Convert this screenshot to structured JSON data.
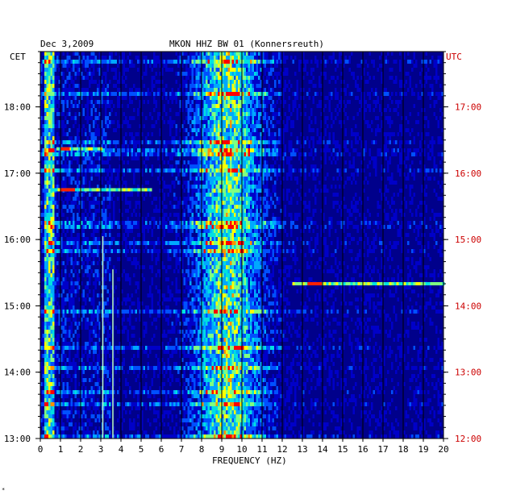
{
  "header": {
    "date": "Dec 3,2009",
    "station": "MKON HHZ BW 01 (Konnersreuth)",
    "left_zone": "CET",
    "right_zone": "UTC",
    "corner_mark": "*"
  },
  "colors": {
    "background": "#00008b",
    "low": "#0000c8",
    "mid": "#00c8ff",
    "high": "#ffff00",
    "peak": "#ff0000",
    "utc_text": "#cc0000"
  },
  "chart_data": {
    "type": "heatmap",
    "title": "MKON HHZ BW 01 (Konnersreuth)",
    "subtitle": "Dec 3,2009",
    "xlabel": "FREQUENCY (HZ)",
    "xlim": [
      0,
      20
    ],
    "x_ticks": [
      "0",
      "1",
      "2",
      "3",
      "4",
      "5",
      "6",
      "7",
      "8",
      "9",
      "10",
      "11",
      "12",
      "13",
      "14",
      "15",
      "16",
      "17",
      "18",
      "19",
      "20"
    ],
    "left_axis": {
      "label": "CET",
      "ticks": [
        "18:00",
        "17:00",
        "16:00",
        "15:00",
        "14:00",
        "13:00"
      ],
      "hours": [
        18,
        17,
        16,
        15,
        14,
        13
      ]
    },
    "right_axis": {
      "label": "UTC",
      "ticks": [
        "17:00",
        "16:00",
        "15:00",
        "14:00",
        "13:00",
        "12:00"
      ],
      "hours": [
        17,
        16,
        15,
        14,
        13,
        12
      ]
    },
    "ylim_cet": [
      "13:00",
      "18:50"
    ],
    "grid": true,
    "energy_bands_hz": [
      [
        7.5,
        11
      ],
      [
        0.2,
        0.5
      ]
    ],
    "spectral_lines_hz": [
      3.1,
      3.6
    ],
    "events": [
      {
        "cet": "17:22",
        "freq_hz": [
          0.8,
          3.0
        ]
      },
      {
        "cet": "16:45",
        "freq_hz": [
          0.5,
          5.5
        ]
      },
      {
        "cet": "15:20",
        "freq_hz": [
          12.5,
          20
        ]
      }
    ]
  }
}
